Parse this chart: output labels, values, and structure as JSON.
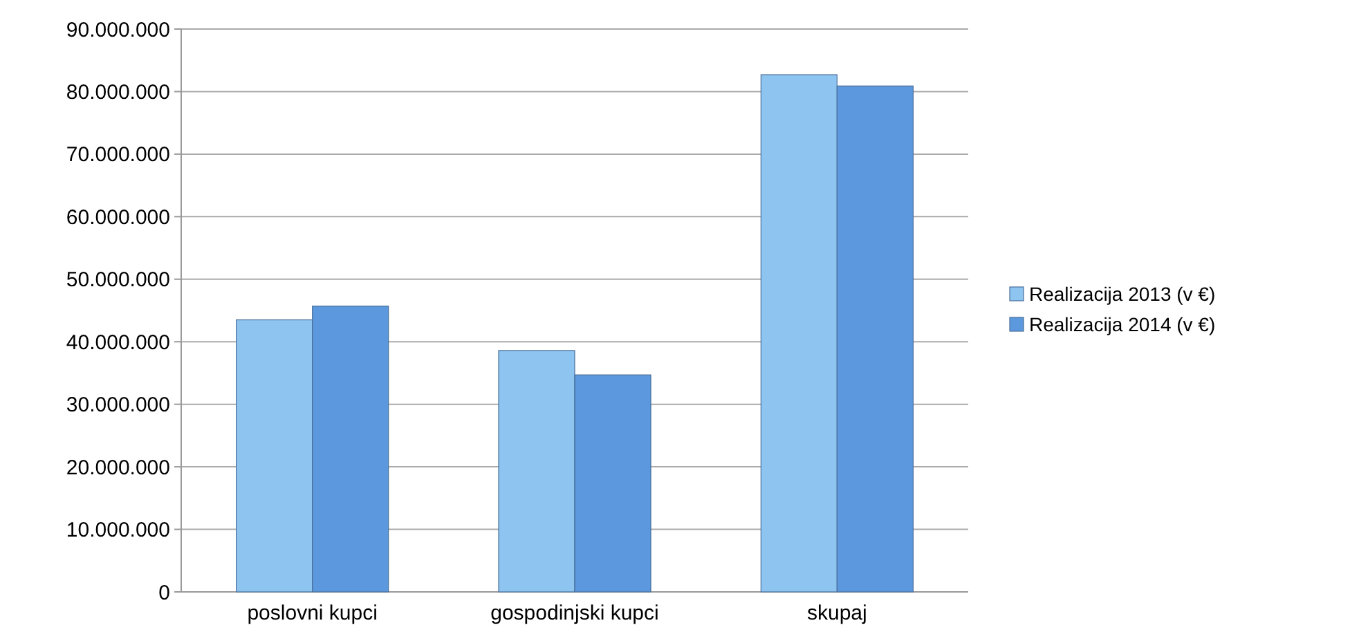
{
  "chart_data": {
    "type": "bar",
    "categories": [
      "poslovni kupci",
      "gospodinjski kupci",
      "skupaj"
    ],
    "series": [
      {
        "name": "Realizacija 2013 (v €)",
        "color": "#8ec4f0",
        "values": [
          43500000,
          38600000,
          82700000
        ]
      },
      {
        "name": "Realizacija 2014 (v €)",
        "color": "#5b98dd",
        "values": [
          45700000,
          34700000,
          80900000
        ]
      }
    ],
    "ylim": [
      0,
      90000000
    ],
    "yticks": [
      {
        "value": 0,
        "label": "0"
      },
      {
        "value": 10000000,
        "label": "10.000.000"
      },
      {
        "value": 20000000,
        "label": "20.000.000"
      },
      {
        "value": 30000000,
        "label": "30.000.000"
      },
      {
        "value": 40000000,
        "label": "40.000.000"
      },
      {
        "value": 50000000,
        "label": "50.000.000"
      },
      {
        "value": 60000000,
        "label": "60.000.000"
      },
      {
        "value": 70000000,
        "label": "70.000.000"
      },
      {
        "value": 80000000,
        "label": "80.000.000"
      },
      {
        "value": 90000000,
        "label": "90.000.000"
      }
    ],
    "grid": "y",
    "legend": "right"
  }
}
